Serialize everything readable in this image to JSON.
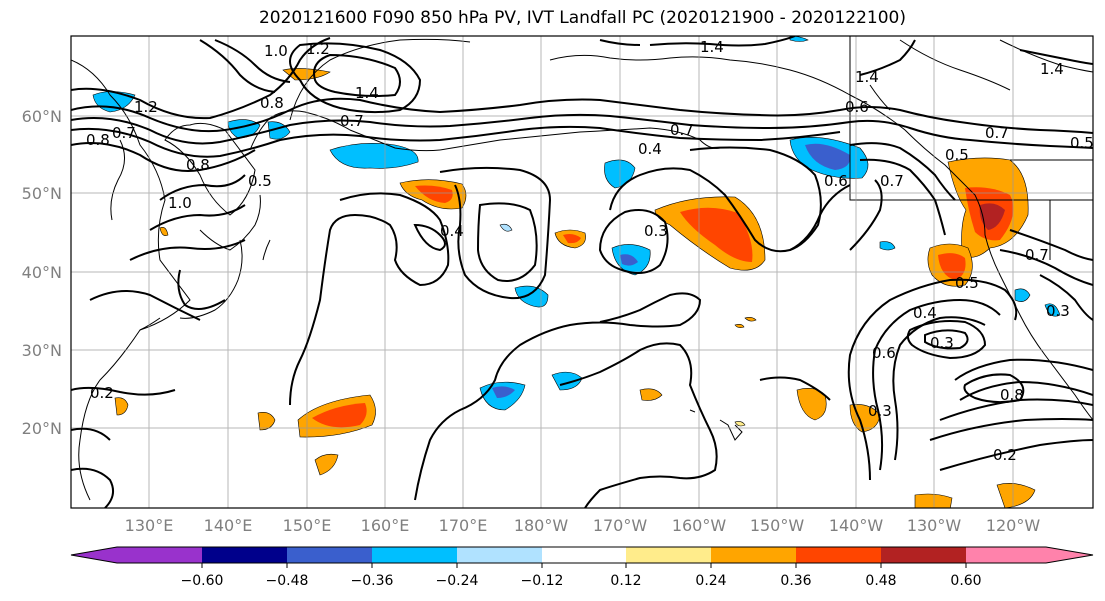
{
  "title": "2020121600 F090 850 hPa PV, IVT Landfall PC (2020121900 - 2020122100)",
  "lat_labels": [
    "60°N",
    "50°N",
    "40°N",
    "30°N",
    "20°N"
  ],
  "lon_labels": [
    "130°E",
    "140°E",
    "150°E",
    "160°E",
    "170°E",
    "180°W",
    "170°W",
    "160°W",
    "150°W",
    "140°W",
    "130°W",
    "120°W"
  ],
  "colorbar": {
    "ticks": [
      "−0.60",
      "−0.48",
      "−0.36",
      "−0.24",
      "−0.12",
      "0.12",
      "0.24",
      "0.36",
      "0.48",
      "0.60"
    ],
    "colors": [
      "#9932cc",
      "#00008b",
      "#3a5fcd",
      "#00bfff",
      "#b0e2ff",
      "#ffffff",
      "#ffec8b",
      "#ffa500",
      "#ff4500",
      "#b22222",
      "#ff82ab"
    ]
  },
  "contour_labels": [
    "1.0",
    "1.2",
    "1.4",
    "1.4",
    "1.4",
    "1.4",
    "0.8",
    "1.2",
    "0.7",
    "0.8",
    "0.7",
    "0.8",
    "1.0",
    "0.5",
    "0.4",
    "0.4",
    "0.7",
    "0.6",
    "0.6",
    "0.7",
    "0.5",
    "0.3",
    "0.7",
    "0.4",
    "0.3",
    "0.5",
    "0.6",
    "0.3",
    "0.8",
    "0.7",
    "0.2",
    "0.2",
    "0.3",
    "0.5"
  ],
  "chart_data": {
    "type": "heatmap",
    "title": "2020121600 F090 850 hPa PV, IVT Landfall PC (2020121900 - 2020122100)",
    "x_ticks": [
      "130°E",
      "140°E",
      "150°E",
      "160°E",
      "170°E",
      "180°W",
      "170°W",
      "160°W",
      "150°W",
      "140°W",
      "130°W",
      "120°W"
    ],
    "y_ticks": [
      "60°N",
      "50°N",
      "40°N",
      "30°N",
      "20°N"
    ],
    "colorbar_ticks": [
      -0.6,
      -0.48,
      -0.36,
      -0.24,
      -0.12,
      0.12,
      0.24,
      0.36,
      0.48,
      0.6
    ],
    "grid": true
  }
}
